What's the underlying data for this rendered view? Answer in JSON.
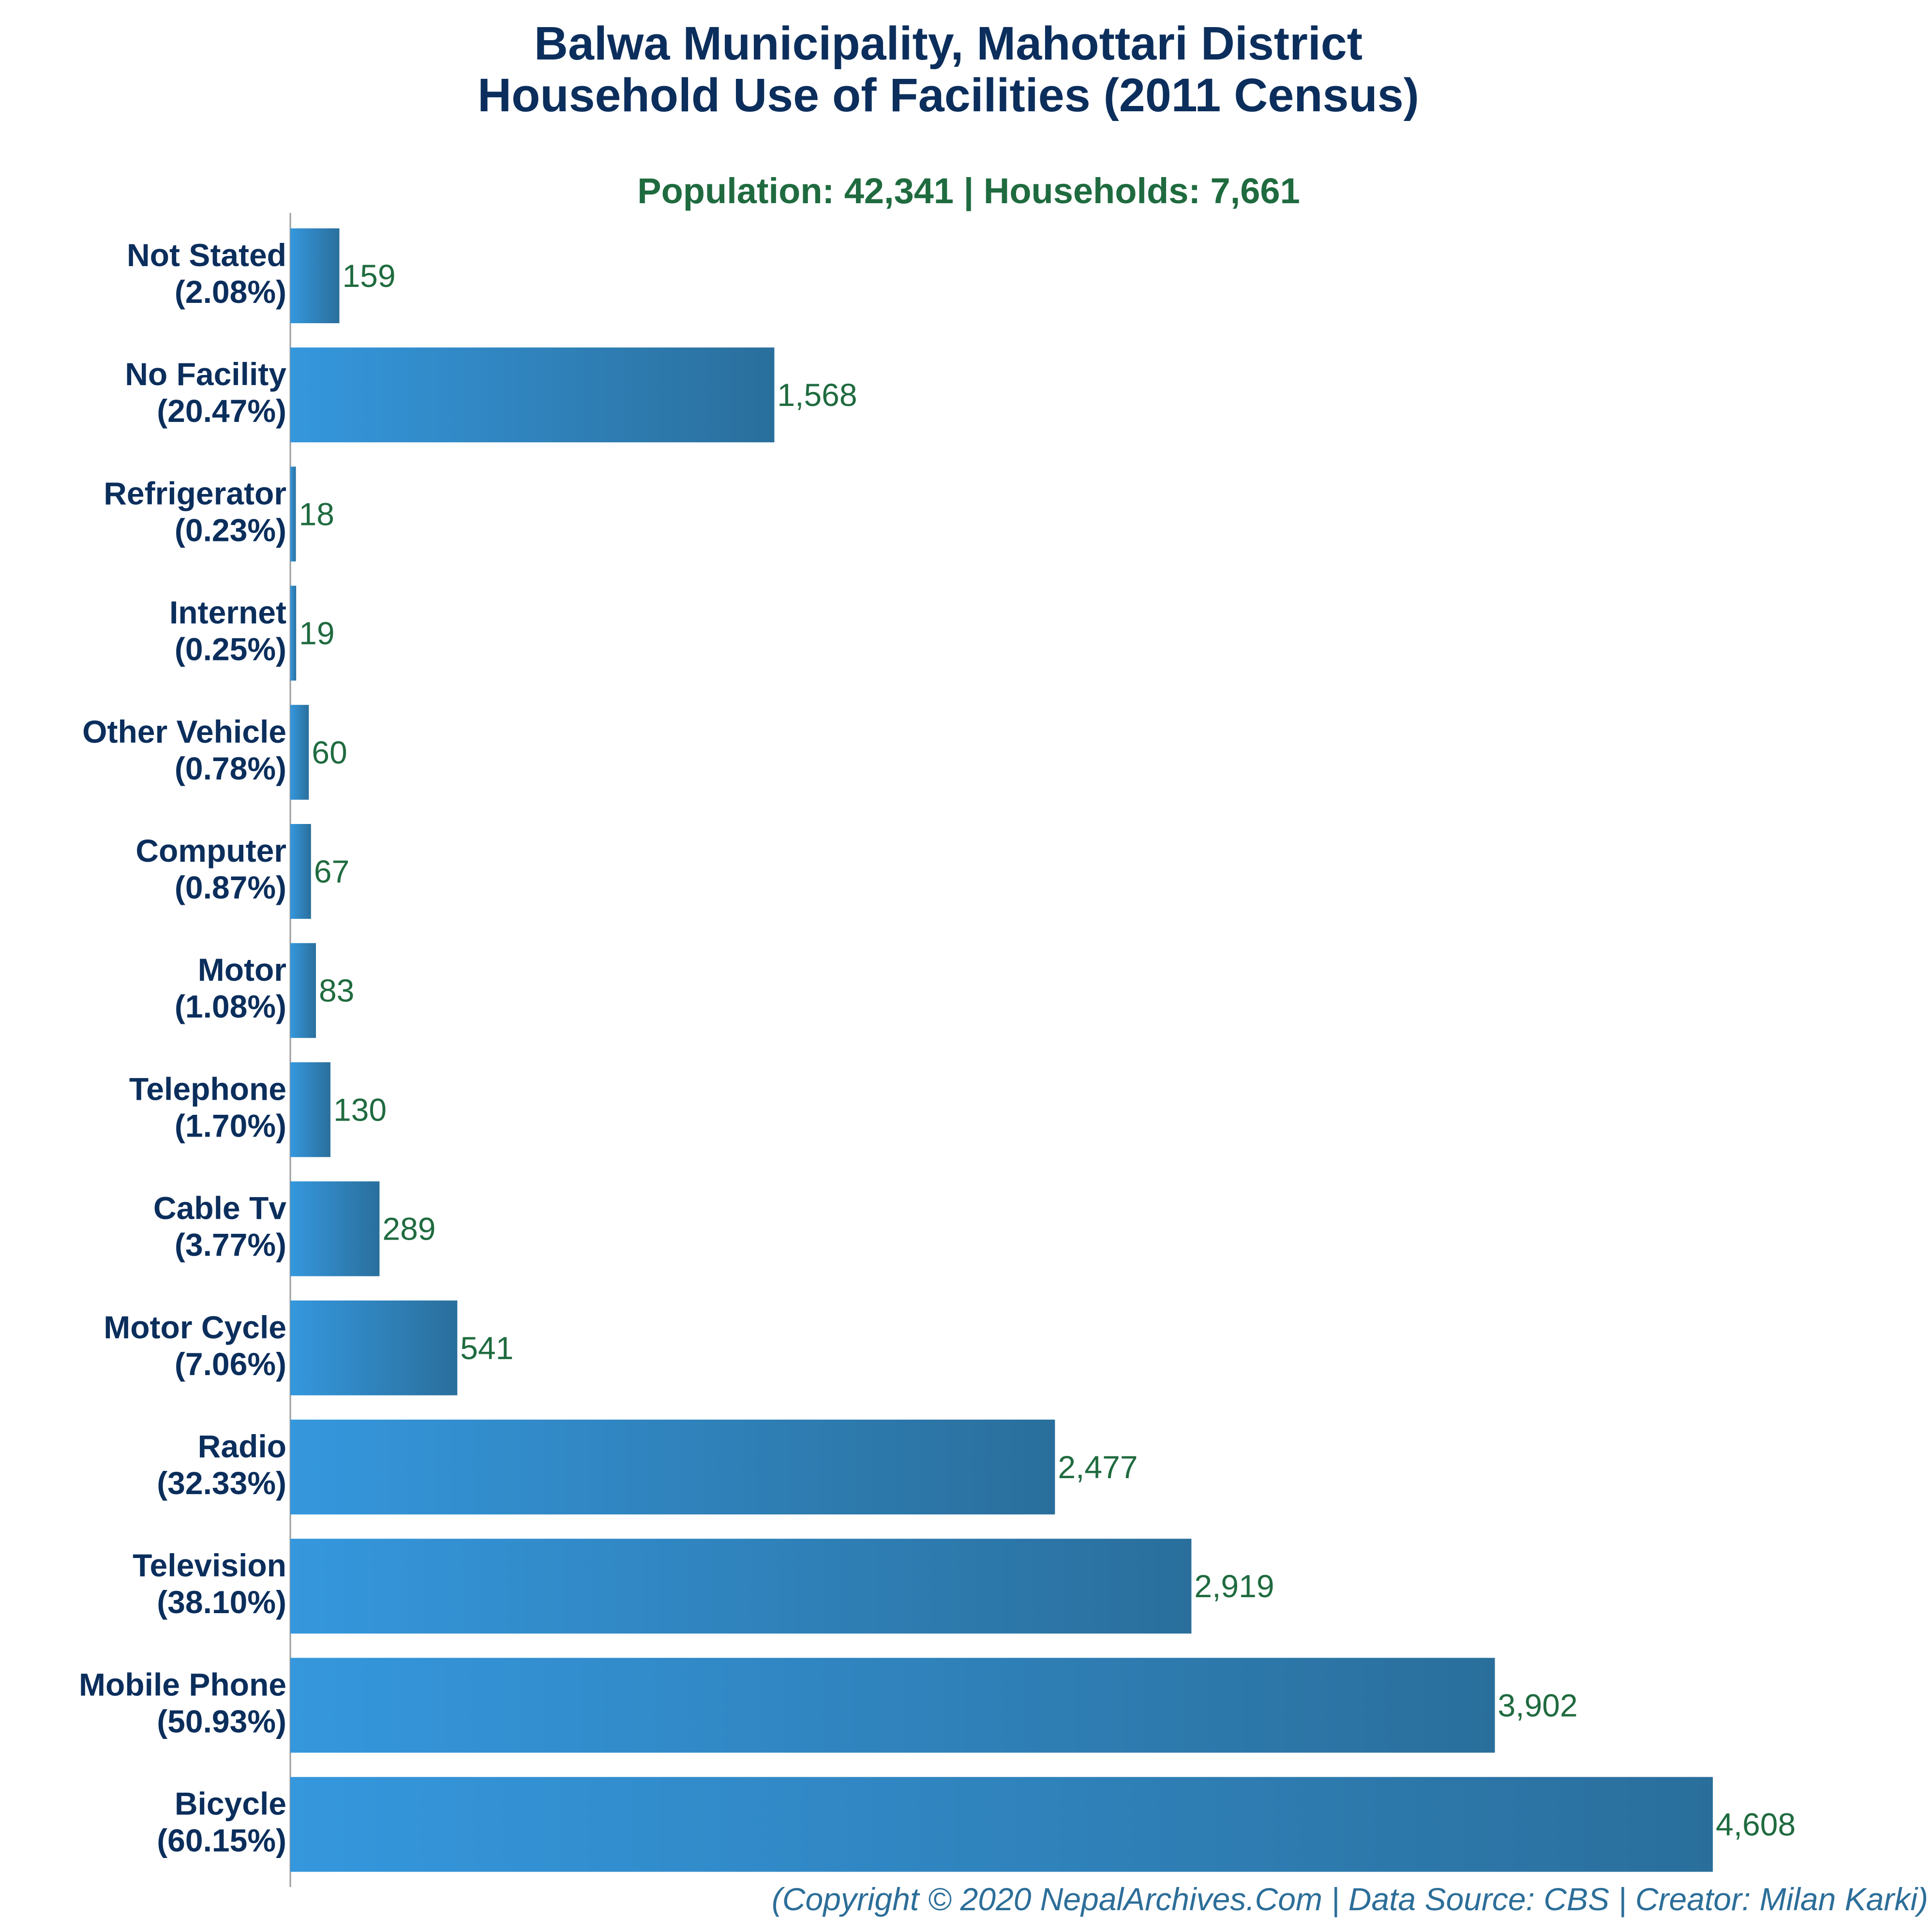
{
  "chart_data": {
    "type": "bar",
    "orientation": "horizontal",
    "title_line1": "Balwa Municipality, Mahottari District",
    "title_line2": "Household Use of Facilities (2011 Census)",
    "subtitle": "Population: 42,341 | Households: 7,661",
    "footer": "(Copyright © 2020 NepalArchives.Com | Data Source: CBS | Creator: Milan Karki)",
    "xlim": [
      0,
      5000
    ],
    "grid": false,
    "colors": {
      "bar_start": "#3597dd",
      "bar_end": "#2a6f9c",
      "category_text": "#0b2e5c",
      "value_text": "#1f6b3f",
      "footer_text": "#2c6e99"
    },
    "categories": [
      {
        "name": "Not Stated",
        "pct": "(2.08%)",
        "value": 159,
        "label": "159"
      },
      {
        "name": "No Facility",
        "pct": "(20.47%)",
        "value": 1568,
        "label": "1,568"
      },
      {
        "name": "Refrigerator",
        "pct": "(0.23%)",
        "value": 18,
        "label": "18"
      },
      {
        "name": "Internet",
        "pct": "(0.25%)",
        "value": 19,
        "label": "19"
      },
      {
        "name": "Other Vehicle",
        "pct": "(0.78%)",
        "value": 60,
        "label": "60"
      },
      {
        "name": "Computer",
        "pct": "(0.87%)",
        "value": 67,
        "label": "67"
      },
      {
        "name": "Motor",
        "pct": "(1.08%)",
        "value": 83,
        "label": "83"
      },
      {
        "name": "Telephone",
        "pct": "(1.70%)",
        "value": 130,
        "label": "130"
      },
      {
        "name": "Cable Tv",
        "pct": "(3.77%)",
        "value": 289,
        "label": "289"
      },
      {
        "name": "Motor Cycle",
        "pct": "(7.06%)",
        "value": 541,
        "label": "541"
      },
      {
        "name": "Radio",
        "pct": "(32.33%)",
        "value": 2477,
        "label": "2,477"
      },
      {
        "name": "Television",
        "pct": "(38.10%)",
        "value": 2919,
        "label": "2,919"
      },
      {
        "name": "Mobile Phone",
        "pct": "(50.93%)",
        "value": 3902,
        "label": "3,902"
      },
      {
        "name": "Bicycle",
        "pct": "(60.15%)",
        "value": 4608,
        "label": "4,608"
      }
    ]
  }
}
